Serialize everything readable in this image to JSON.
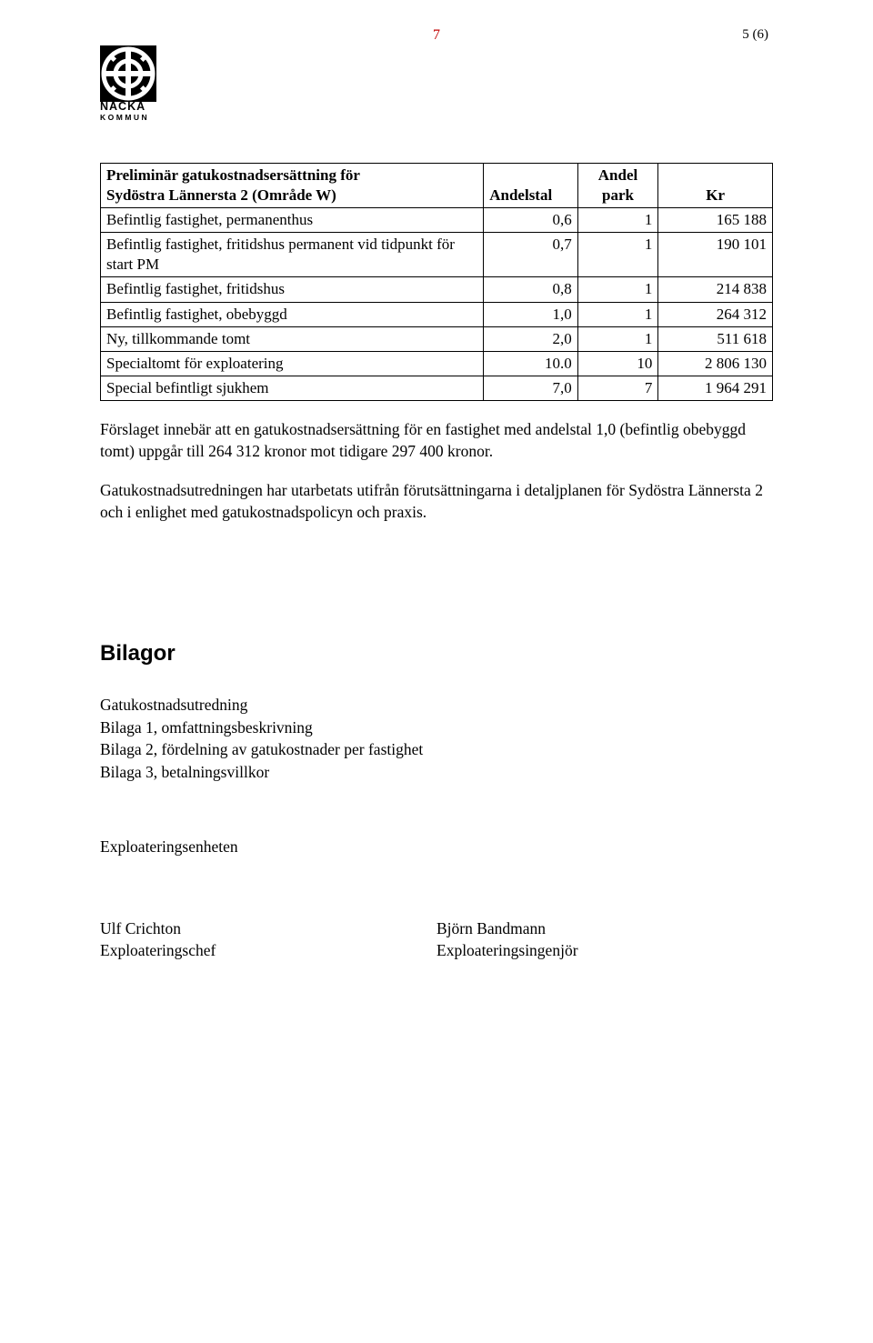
{
  "page_number_center": "7",
  "page_number_center_color": "#c00000",
  "page_number_right": "5 (6)",
  "logo": {
    "line1": "NACKA",
    "line2": "KOMMUN"
  },
  "table": {
    "headers": {
      "desc_line1": "Preliminär gatukostnadsersättning för",
      "desc_line2": "Sydöstra Lännersta 2 (Område W)",
      "andelstal": "Andelstal",
      "andel_line1": "Andel",
      "andel_line2": "park",
      "kr": "Kr"
    },
    "rows": [
      {
        "desc": "Befintlig fastighet, permanenthus",
        "andelstal": "0,6",
        "andel": "1",
        "kr": "165 188"
      },
      {
        "desc": "Befintlig fastighet, fritidshus permanent vid tidpunkt för start PM",
        "andelstal": "0,7",
        "andel": "1",
        "kr": "190 101"
      },
      {
        "desc": "Befintlig fastighet, fritidshus",
        "andelstal": "0,8",
        "andel": "1",
        "kr": "214 838"
      },
      {
        "desc": "Befintlig fastighet, obebyggd",
        "andelstal": "1,0",
        "andel": "1",
        "kr": "264 312"
      },
      {
        "desc": "Ny, tillkommande tomt",
        "andelstal": "2,0",
        "andel": "1",
        "kr": "511 618"
      },
      {
        "desc": "Specialtomt för exploatering",
        "andelstal": "10.0",
        "andel": "10",
        "kr": "2 806 130"
      },
      {
        "desc": "Special befintligt sjukhem",
        "andelstal": "7,0",
        "andel": "7",
        "kr": "1 964 291"
      }
    ]
  },
  "paragraphs": {
    "p1": "Förslaget innebär att en gatukostnadsersättning för en fastighet med andelstal 1,0 (befintlig obebyggd tomt) uppgår till 264 312 kronor mot tidigare 297 400 kronor.",
    "p2": "Gatukostnadsutredningen har utarbetats utifrån förutsättningarna i detaljplanen för Sydöstra Lännersta 2 och i enlighet med gatukostnadspolicyn och praxis."
  },
  "bilagor": {
    "heading": "Bilagor",
    "items": [
      "Gatukostnadsutredning",
      "Bilaga 1, omfattningsbeskrivning",
      "Bilaga 2, fördelning av gatukostnader per fastighet",
      "Bilaga 3, betalningsvillkor"
    ]
  },
  "enheten": "Exploateringsenheten",
  "signatures": {
    "left": {
      "name": "Ulf Crichton",
      "title": "Exploateringschef"
    },
    "right": {
      "name": "Björn Bandmann",
      "title": "Exploateringsingenjör"
    }
  }
}
